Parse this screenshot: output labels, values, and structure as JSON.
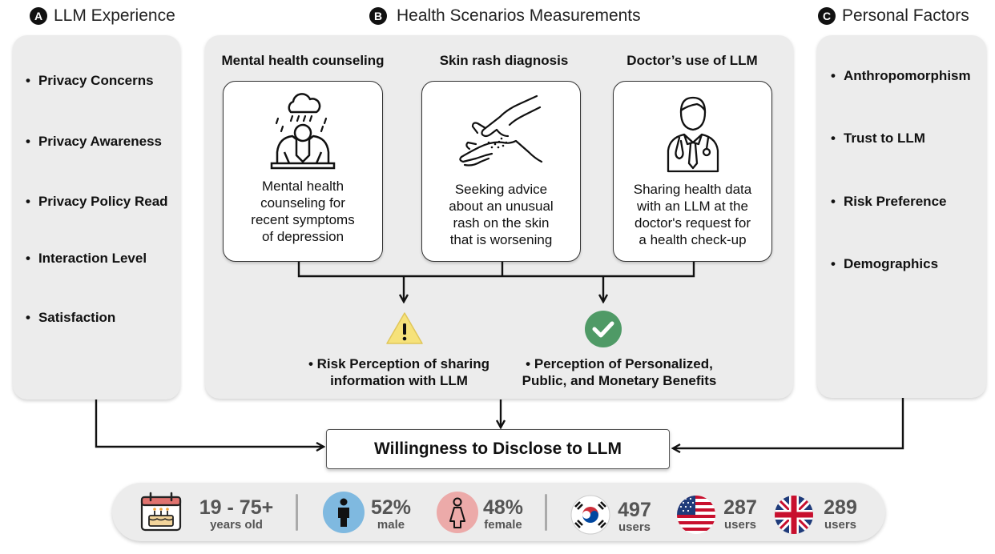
{
  "sections": {
    "a": {
      "badge": "A",
      "title": "LLM Experience"
    },
    "b": {
      "badge": "B",
      "title": "Health Scenarios Measurements"
    },
    "c": {
      "badge": "C",
      "title": "Personal Factors"
    }
  },
  "llm_experience": [
    "Privacy Concerns",
    "Privacy Awareness",
    "Privacy Policy Read",
    "Interaction Level",
    "Satisfaction"
  ],
  "personal_factors": [
    "Anthropomorphism",
    "Trust to LLM",
    "Risk Preference",
    "Demographics"
  ],
  "scenarios": [
    {
      "title": "Mental health counseling",
      "icon": "distressed-person-rain-cloud-icon",
      "lines": [
        "Mental health",
        "counseling for",
        "recent symptoms",
        "of depression"
      ]
    },
    {
      "title": "Skin rash diagnosis",
      "icon": "hand-scratching-rash-icon",
      "lines": [
        "Seeking advice",
        "about an unusual",
        "rash on the skin",
        "that is worsening"
      ]
    },
    {
      "title": "Doctor’s use of LLM",
      "icon": "doctor-icon",
      "lines": [
        "Sharing health data",
        "with an LLM at the",
        "doctor's request for",
        "a health check-up"
      ]
    }
  ],
  "perceptions": {
    "risk": {
      "icon": "warning-icon",
      "lines": [
        "Risk Perception of sharing",
        "information with LLM"
      ]
    },
    "benefit": {
      "icon": "checkmark-icon",
      "lines": [
        "Perception of Personalized,",
        "Public, and Monetary Benefits"
      ]
    }
  },
  "outcome": "Willingness to Disclose to LLM",
  "stats": {
    "age": {
      "value": "19 - 75+",
      "label": "years old",
      "icon": "calendar-cake-icon"
    },
    "male": {
      "value": "52%",
      "label": "male",
      "icon": "male-person-icon"
    },
    "female": {
      "value": "48%",
      "label": "female",
      "icon": "female-person-icon"
    },
    "korea": {
      "value": "497",
      "label": "users",
      "icon": "south-korea-flag-icon"
    },
    "usa": {
      "value": "287",
      "label": "users",
      "icon": "usa-flag-icon"
    },
    "uk": {
      "value": "289",
      "label": "users",
      "icon": "uk-flag-icon"
    }
  },
  "colors": {
    "panel": "#ececec",
    "warning": "#f6e27a",
    "check": "#4f9a66",
    "male_circle": "#7fb9e0",
    "female_circle": "#ecaaa9"
  }
}
